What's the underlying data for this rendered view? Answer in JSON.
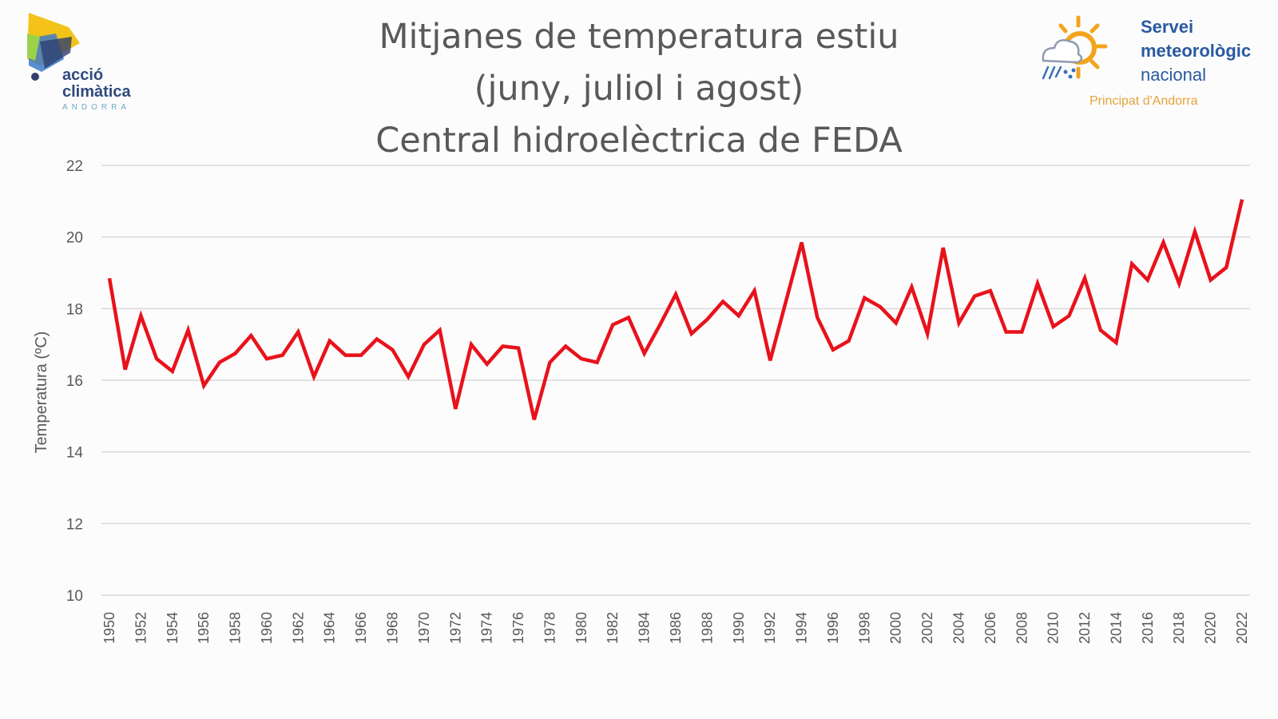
{
  "logos": {
    "left": {
      "line1": "acció",
      "line2": "climàtica",
      "line3": "ANDORRA"
    },
    "right": {
      "line1": "Servei",
      "line2": "meteorològic",
      "line3": "nacional",
      "line4": "Principat d'Andorra"
    }
  },
  "colors": {
    "line": "#e8121b",
    "grid": "#d9d9d9",
    "text": "#595959"
  },
  "chart_data": {
    "type": "line",
    "title": [
      "Mitjanes de temperatura estiu",
      "(juny, juliol i agost)",
      "Central hidroelèctrica de FEDA"
    ],
    "xlabel": "",
    "ylabel": "Temperatura (ºC)",
    "ylim": [
      10,
      22
    ],
    "yticks": [
      10,
      12,
      14,
      16,
      18,
      20,
      22
    ],
    "grid": true,
    "x": [
      1950,
      1951,
      1952,
      1953,
      1954,
      1955,
      1956,
      1957,
      1958,
      1959,
      1960,
      1961,
      1962,
      1963,
      1964,
      1965,
      1966,
      1967,
      1968,
      1969,
      1970,
      1971,
      1972,
      1973,
      1974,
      1975,
      1976,
      1977,
      1978,
      1979,
      1980,
      1981,
      1982,
      1983,
      1984,
      1985,
      1986,
      1987,
      1988,
      1989,
      1990,
      1991,
      1992,
      1993,
      1994,
      1995,
      1996,
      1997,
      1998,
      1999,
      2000,
      2001,
      2002,
      2003,
      2004,
      2005,
      2006,
      2007,
      2008,
      2009,
      2010,
      2011,
      2012,
      2013,
      2014,
      2015,
      2016,
      2017,
      2018,
      2019,
      2020,
      2021,
      2022
    ],
    "xtick_labels": [
      "1950",
      "1952",
      "1954",
      "1956",
      "1958",
      "1960",
      "1962",
      "1964",
      "1966",
      "1968",
      "1970",
      "1972",
      "1974",
      "1976",
      "1978",
      "1980",
      "1982",
      "1984",
      "1986",
      "1988",
      "1990",
      "1992",
      "1994",
      "1996",
      "1998",
      "2000",
      "2002",
      "2004",
      "2006",
      "2008",
      "2010",
      "2012",
      "2014",
      "2016",
      "2018",
      "2020",
      "2022"
    ],
    "series": [
      {
        "values": [
          18.85,
          16.3,
          17.8,
          16.6,
          16.25,
          17.4,
          15.85,
          16.5,
          16.75,
          17.25,
          16.6,
          16.7,
          17.35,
          16.1,
          17.1,
          16.7,
          16.7,
          17.15,
          16.85,
          16.1,
          17.0,
          17.4,
          15.2,
          17.0,
          16.45,
          16.95,
          16.9,
          14.9,
          16.5,
          16.95,
          16.6,
          16.5,
          17.55,
          17.75,
          16.75,
          17.55,
          18.4,
          17.3,
          17.7,
          18.2,
          17.8,
          18.5,
          16.55,
          18.2,
          19.85,
          17.75,
          16.85,
          17.1,
          18.3,
          18.05,
          17.6,
          18.6,
          17.3,
          19.7,
          17.6,
          18.35,
          18.5,
          17.35,
          17.35,
          18.7,
          17.5,
          17.8,
          18.85,
          17.4,
          17.05,
          19.25,
          18.8,
          19.85,
          18.7,
          20.15,
          18.8,
          19.15,
          21.05
        ]
      }
    ]
  }
}
